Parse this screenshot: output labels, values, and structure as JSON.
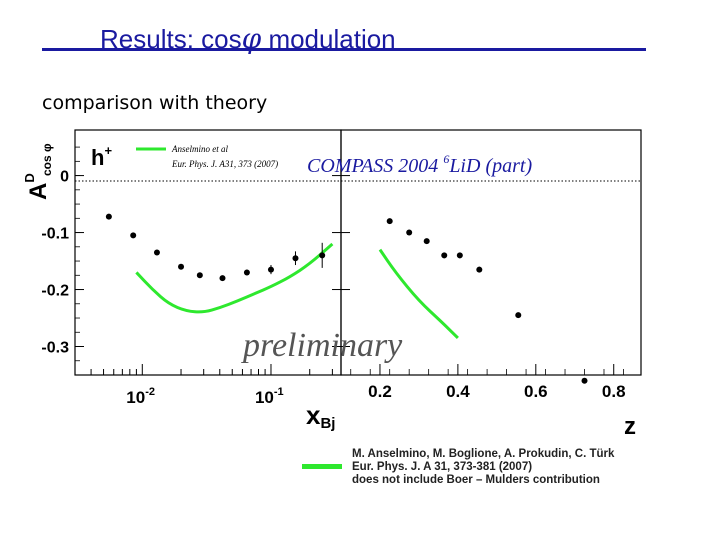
{
  "slide": {
    "title_main": "Results: cos",
    "title_phi": "φ",
    "title_tail": " modulation",
    "subtitle": "comparison with theory"
  },
  "colors": {
    "title": "#1a1aa0",
    "theory": "#2ee82e",
    "compass": "#1a1aa0",
    "data": "#000000"
  },
  "reference_note": {
    "line1": "M. Anselmino, M. Boglione, A. Prokudin, C. Türk",
    "line2": "Eur. Phys. J. A 31, 373-381 (2007)",
    "line3": "does not include Boer – Mulders contribution"
  },
  "chart_data": [
    {
      "type": "scatter",
      "panel": "left",
      "ylabel_main": "A",
      "ylabel_sup": "D",
      "ylabel_sub": "cos φ",
      "xlabel_main": "x",
      "xlabel_sub": "Bj",
      "hadron_main": "h",
      "hadron_sup": "+",
      "legend": {
        "line1": "Anselmino et al",
        "line2": "Eur. Phys. J. A31, 373 (2007)"
      },
      "xscale": "log",
      "xlim": [
        0.003,
        0.35
      ],
      "ylim": [
        -0.35,
        0.08
      ],
      "yticks": [
        0,
        -0.1,
        -0.2,
        -0.3
      ],
      "ytick_labels": [
        "0",
        "-0.1",
        "-0.2",
        "-0.3"
      ],
      "xtick_labels": [
        {
          "value": 0.01,
          "base": "10",
          "exp": "-2"
        },
        {
          "value": 0.1,
          "base": "10",
          "exp": "-1"
        }
      ],
      "series": [
        {
          "kind": "points",
          "x": [
            0.0055,
            0.0085,
            0.013,
            0.02,
            0.028,
            0.042,
            0.065,
            0.1,
            0.155,
            0.25
          ],
          "y": [
            -0.072,
            -0.105,
            -0.135,
            -0.16,
            -0.175,
            -0.18,
            -0.17,
            -0.165,
            -0.145,
            -0.14
          ],
          "yerr": [
            0.004,
            0.004,
            0.004,
            0.004,
            0.004,
            0.004,
            0.005,
            0.008,
            0.012,
            0.022
          ]
        },
        {
          "kind": "theory",
          "x": [
            0.009,
            0.012,
            0.016,
            0.022,
            0.03,
            0.04,
            0.055,
            0.075,
            0.1,
            0.14,
            0.2,
            0.3
          ],
          "y": [
            -0.17,
            -0.2,
            -0.225,
            -0.238,
            -0.24,
            -0.232,
            -0.22,
            -0.207,
            -0.195,
            -0.178,
            -0.155,
            -0.12
          ]
        }
      ]
    },
    {
      "type": "scatter",
      "panel": "right",
      "xlabel": "z",
      "annotation_main": "COMPASS  2004 ",
      "annotation_sup": "6",
      "annotation_tail": "Li",
      "annotation_d": "D (part)",
      "watermark": "preliminary",
      "xlim": [
        0.1,
        0.87
      ],
      "ylim": [
        -0.35,
        0.08
      ],
      "xticks": [
        0.2,
        0.4,
        0.6,
        0.8
      ],
      "xtick_labels": [
        "0.2",
        "0.4",
        "0.6",
        "0.8"
      ],
      "series": [
        {
          "kind": "points",
          "x": [
            0.225,
            0.275,
            0.32,
            0.365,
            0.405,
            0.455,
            0.555,
            0.725
          ],
          "y": [
            -0.08,
            -0.1,
            -0.115,
            -0.14,
            -0.14,
            -0.165,
            -0.245,
            -0.36
          ],
          "yerr": [
            0.004,
            0.004,
            0.004,
            0.005,
            0.005,
            0.005,
            0.004,
            0.004
          ]
        },
        {
          "kind": "theory",
          "x": [
            0.2,
            0.24,
            0.3,
            0.36,
            0.4
          ],
          "y": [
            -0.13,
            -0.17,
            -0.22,
            -0.258,
            -0.285
          ]
        }
      ]
    }
  ]
}
